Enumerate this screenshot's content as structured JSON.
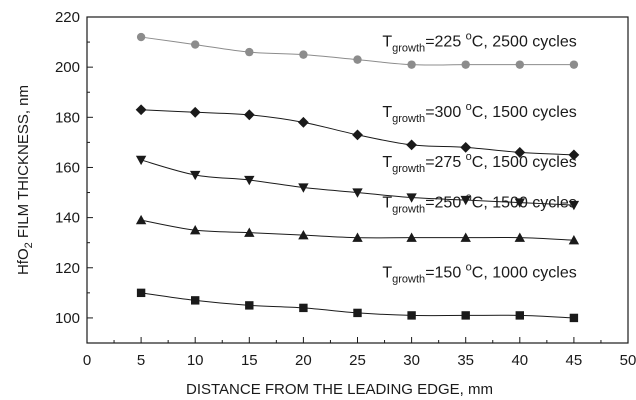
{
  "chart_data": {
    "type": "line",
    "xlabel": "DISTANCE FROM THE LEADING EDGE, mm",
    "ylabel": {
      "main": "HfO",
      "sub": "2",
      "rest": " FILM THICKNESS, nm"
    },
    "xlim": [
      0,
      50
    ],
    "ylim": [
      90,
      220
    ],
    "x_ticks": [
      0,
      5,
      10,
      15,
      20,
      25,
      30,
      35,
      40,
      45,
      50
    ],
    "x_tick_labels": [
      "0",
      "5",
      "10",
      "15",
      "20",
      "25",
      "30",
      "35",
      "40",
      "45",
      "50"
    ],
    "y_ticks": [
      100,
      120,
      140,
      160,
      180,
      200,
      220
    ],
    "y_tick_labels": [
      "100",
      "120",
      "140",
      "160",
      "180",
      "200",
      "220"
    ],
    "grid": false,
    "x": [
      5,
      10,
      15,
      20,
      25,
      30,
      35,
      40,
      45
    ],
    "series": [
      {
        "values": [
          212,
          209,
          206,
          205,
          203,
          201,
          201,
          201,
          201
        ],
        "marker": "circle",
        "color": "#8c8c8c",
        "label": {
          "pre": "T",
          "sub": "growth",
          "mid": "=225 ",
          "sup": "o",
          "post": "C, 2500 cycles"
        }
      },
      {
        "values": [
          183,
          182,
          181,
          178,
          173,
          169,
          168,
          166,
          165
        ],
        "marker": "diamond",
        "color": "#1a1a1a",
        "label": {
          "pre": "T",
          "sub": "growth",
          "mid": "=300 ",
          "sup": "o",
          "post": "C, 1500 cycles"
        }
      },
      {
        "values": [
          163,
          157,
          155,
          152,
          150,
          148,
          147,
          146,
          145
        ],
        "marker": "triangle-down",
        "color": "#1a1a1a",
        "label": {
          "pre": "T",
          "sub": "growth",
          "mid": "=275 ",
          "sup": "o",
          "post": "C, 1500 cycles"
        }
      },
      {
        "values": [
          139,
          135,
          134,
          133,
          132,
          132,
          132,
          132,
          131
        ],
        "marker": "triangle-up",
        "color": "#1a1a1a",
        "label": {
          "pre": "T",
          "sub": "growth",
          "mid": "=250 ",
          "sup": "o",
          "post": "C, 1500 cycles"
        }
      },
      {
        "values": [
          110,
          107,
          105,
          104,
          102,
          101,
          101,
          101,
          100
        ],
        "marker": "square",
        "color": "#1a1a1a",
        "label": {
          "pre": "T",
          "sub": "growth",
          "mid": "=150 ",
          "sup": "o",
          "post": "C, 1000 cycles"
        }
      }
    ]
  }
}
